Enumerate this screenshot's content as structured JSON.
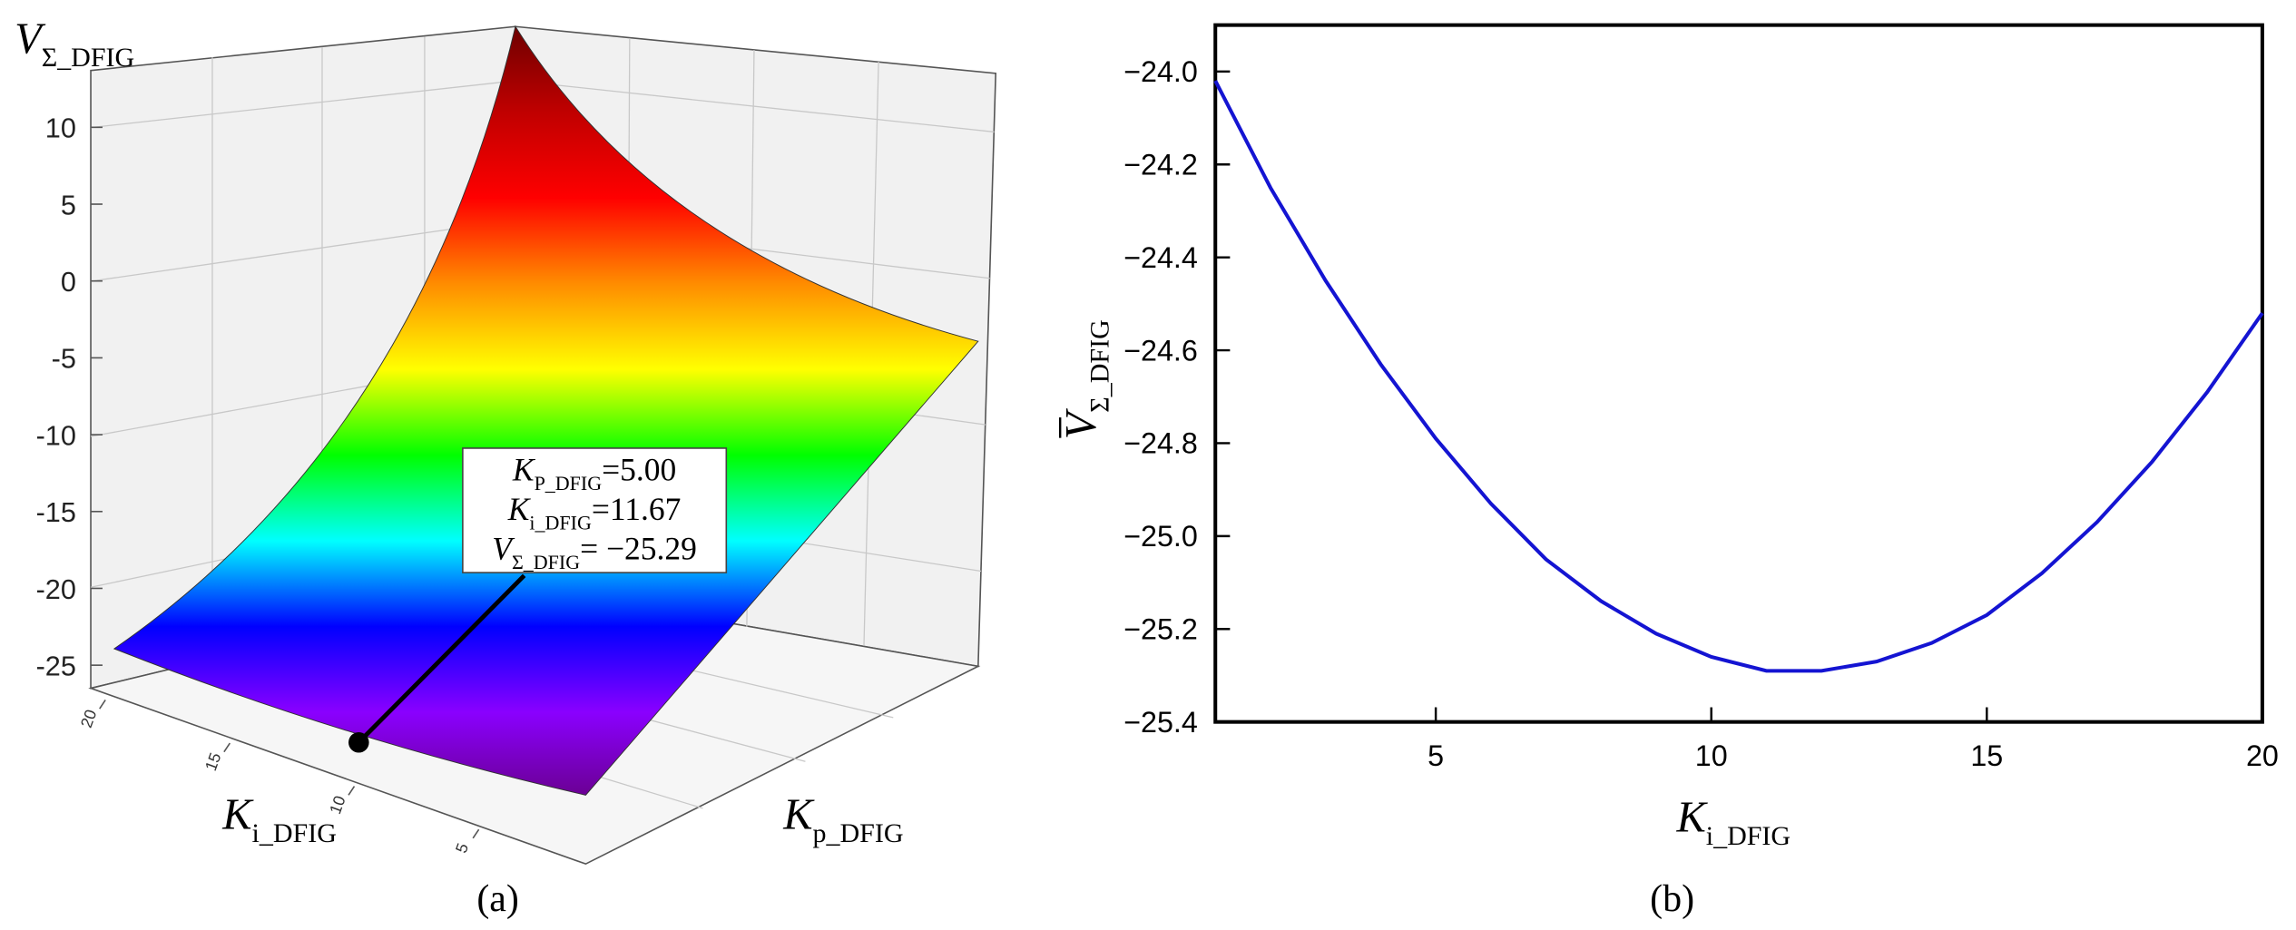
{
  "chart_data": [
    {
      "type": "surface3d",
      "panel_label": "(a)",
      "z_label": {
        "symbol": "V",
        "subscript": "Σ_DFIG"
      },
      "x_label": {
        "symbol": "K",
        "subscript": "i_DFIG"
      },
      "y_label": {
        "symbol": "K",
        "subscript": "p_DFIG"
      },
      "zlim": [
        -26.5,
        13.7
      ],
      "zticks": [
        -25,
        -20,
        -15,
        -10,
        -5,
        0,
        5,
        10
      ],
      "xlim": [
        1,
        20
      ],
      "xticks": [
        5,
        10,
        15,
        20
      ],
      "colormap": [
        "#6e0000",
        "#c00000",
        "#ff0000",
        "#ff8c00",
        "#ffff00",
        "#00ff00",
        "#00ffff",
        "#0000ff",
        "#8a00ff",
        "#6a0090"
      ],
      "annotation": [
        {
          "symbol": "K",
          "subscript": "P_DFIG",
          "text": "=5.00"
        },
        {
          "symbol": "K",
          "subscript": "i_DFIG",
          "text": "=11.67"
        },
        {
          "symbol": "V",
          "subscript": "Σ_DFIG",
          "text": "= −25.29"
        }
      ]
    },
    {
      "type": "line",
      "panel_label": "(b)",
      "x_label": {
        "symbol": "K",
        "subscript": "i_DFIG"
      },
      "y_label": {
        "symbol": "V",
        "subscript": "Σ_DFIG"
      },
      "x": [
        1,
        2,
        3,
        4,
        5,
        6,
        7,
        8,
        9,
        10,
        11,
        12,
        13,
        14,
        15,
        16,
        17,
        18,
        19,
        20
      ],
      "values": [
        -24.02,
        -24.25,
        -24.45,
        -24.63,
        -24.79,
        -24.93,
        -25.05,
        -25.14,
        -25.21,
        -25.26,
        -25.29,
        -25.29,
        -25.27,
        -25.23,
        -25.17,
        -25.08,
        -24.97,
        -24.84,
        -24.69,
        -24.52
      ],
      "color": "#1414d2",
      "xlim": [
        1,
        20
      ],
      "xticks": [
        5,
        10,
        15,
        20
      ],
      "ylim": [
        -25.4,
        -23.9
      ],
      "yticks": [
        {
          "value": -24.0,
          "label": "−24.0"
        },
        {
          "value": -24.2,
          "label": "−24.2"
        },
        {
          "value": -24.4,
          "label": "−24.4"
        },
        {
          "value": -24.6,
          "label": "−24.6"
        },
        {
          "value": -24.8,
          "label": "−24.8"
        },
        {
          "value": -25.0,
          "label": "−25.0"
        },
        {
          "value": -25.2,
          "label": "−25.2"
        },
        {
          "value": -25.4,
          "label": "−25.4"
        }
      ]
    }
  ]
}
